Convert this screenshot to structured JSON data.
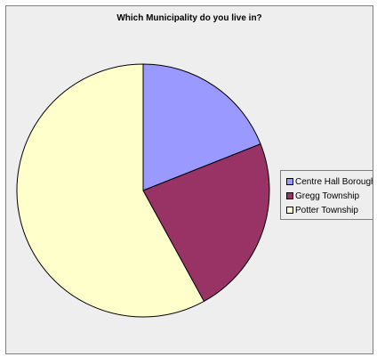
{
  "chart_data": {
    "type": "pie",
    "title": "Which Municipality do you live in?",
    "categories": [
      "Centre Hall Borough",
      "Gregg Township",
      "Potter Township"
    ],
    "values": [
      19,
      23,
      58
    ],
    "colors": [
      "#9999ff",
      "#993366",
      "#ffffcc"
    ],
    "legend_position": "right",
    "start_angle": "top-center",
    "direction": "clockwise"
  }
}
